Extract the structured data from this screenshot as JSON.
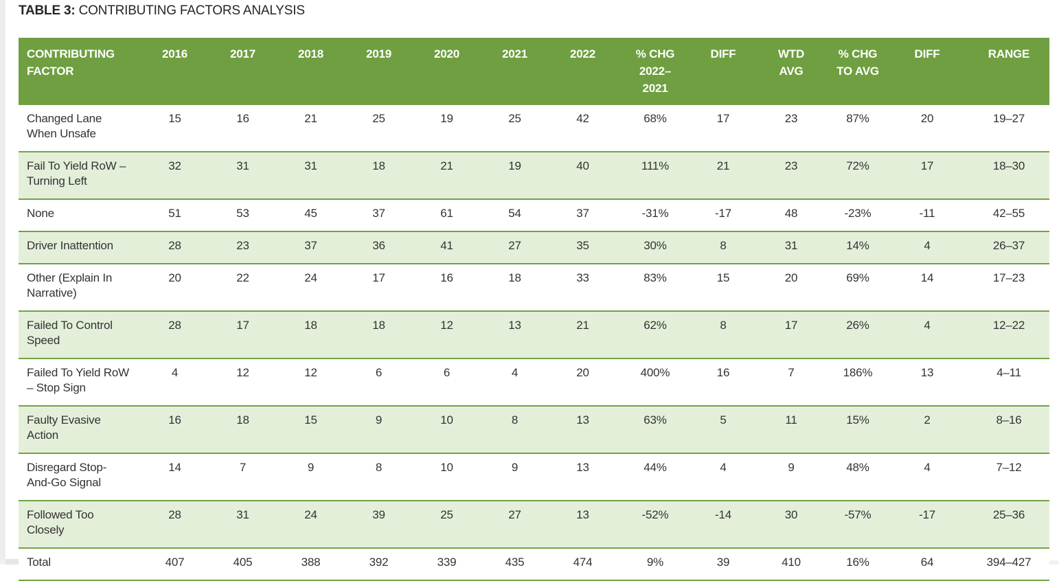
{
  "title": {
    "prefix": "TABLE 3:",
    "rest": " CONTRIBUTING FACTORS ANALYSIS"
  },
  "colors": {
    "header_green": "#6f9f41",
    "shaded_row_green": "#e4efda",
    "row_border_green": "#72a244",
    "header_text": "#ffffff",
    "body_text": "#333333"
  },
  "table": {
    "columns": [
      {
        "label": "CONTRIBUTING\nFACTOR"
      },
      {
        "label": "2016"
      },
      {
        "label": "2017"
      },
      {
        "label": "2018"
      },
      {
        "label": "2019"
      },
      {
        "label": "2020"
      },
      {
        "label": "2021"
      },
      {
        "label": "2022"
      },
      {
        "label": "% CHG\n2022–\n2021"
      },
      {
        "label": "DIFF"
      },
      {
        "label": "WTD\nAVG"
      },
      {
        "label": "% CHG\nTO AVG"
      },
      {
        "label": "DIFF"
      },
      {
        "label": "RANGE"
      }
    ],
    "rows": [
      {
        "factor": "Changed Lane\nWhen Unsafe",
        "values": [
          "15",
          "16",
          "21",
          "25",
          "19",
          "25",
          "42",
          "68%",
          "17",
          "23",
          "87%",
          "20",
          "19–27"
        ]
      },
      {
        "factor": "Fail To Yield RoW –\nTurning Left",
        "values": [
          "32",
          "31",
          "31",
          "18",
          "21",
          "19",
          "40",
          "111%",
          "21",
          "23",
          "72%",
          "17",
          "18–30"
        ]
      },
      {
        "factor": "None",
        "values": [
          "51",
          "53",
          "45",
          "37",
          "61",
          "54",
          "37",
          "-31%",
          "-17",
          "48",
          "-23%",
          "-11",
          "42–55"
        ]
      },
      {
        "factor": "Driver Inattention",
        "values": [
          "28",
          "23",
          "37",
          "36",
          "41",
          "27",
          "35",
          "30%",
          "8",
          "31",
          "14%",
          "4",
          "26–37"
        ]
      },
      {
        "factor": "Other (Explain In\nNarrative)",
        "values": [
          "20",
          "22",
          "24",
          "17",
          "16",
          "18",
          "33",
          "83%",
          "15",
          "20",
          "69%",
          "14",
          "17–23"
        ]
      },
      {
        "factor": "Failed To Control\nSpeed",
        "values": [
          "28",
          "17",
          "18",
          "18",
          "12",
          "13",
          "21",
          "62%",
          "8",
          "17",
          "26%",
          "4",
          "12–22"
        ]
      },
      {
        "factor": "Failed To Yield RoW\n– Stop Sign",
        "values": [
          "4",
          "12",
          "12",
          "6",
          "6",
          "4",
          "20",
          "400%",
          "16",
          "7",
          "186%",
          "13",
          "4–11"
        ]
      },
      {
        "factor": "Faulty Evasive\nAction",
        "values": [
          "16",
          "18",
          "15",
          "9",
          "10",
          "8",
          "13",
          "63%",
          "5",
          "11",
          "15%",
          "2",
          "8–16"
        ]
      },
      {
        "factor": "Disregard Stop-\nAnd-Go Signal",
        "values": [
          "14",
          "7",
          "9",
          "8",
          "10",
          "9",
          "13",
          "44%",
          "4",
          "9",
          "48%",
          "4",
          "7–12"
        ]
      },
      {
        "factor": "Followed Too\nClosely",
        "values": [
          "28",
          "31",
          "24",
          "39",
          "25",
          "27",
          "13",
          "-52%",
          "-14",
          "30",
          "-57%",
          "-17",
          "25–36"
        ]
      },
      {
        "factor": "Total",
        "values": [
          "407",
          "405",
          "388",
          "392",
          "339",
          "435",
          "474",
          "9%",
          "39",
          "410",
          "16%",
          "64",
          "394–427"
        ]
      }
    ]
  }
}
